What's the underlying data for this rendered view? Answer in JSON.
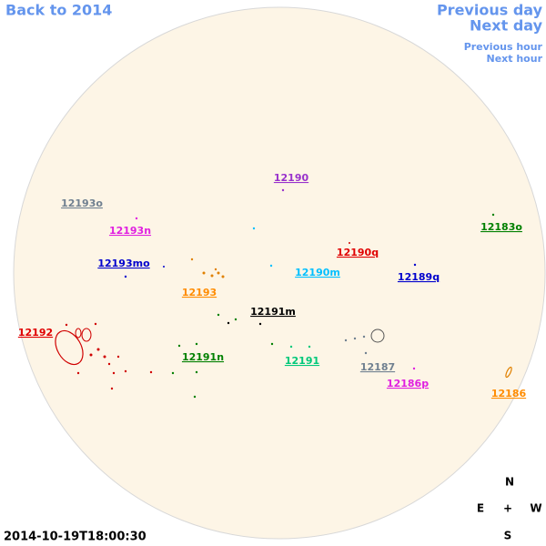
{
  "nav": {
    "back": "Back to 2014",
    "previous_day": "Previous day",
    "next_day": "Next day",
    "previous_hour": "Previous hour",
    "next_hour": "Next hour"
  },
  "regions": [
    {
      "label": "12193o",
      "color": "#708090"
    },
    {
      "label": "12193n",
      "color": "#e020e0"
    },
    {
      "label": "12190",
      "color": "#9932cc"
    },
    {
      "label": "12183o",
      "color": "#008000"
    },
    {
      "label": "12190q",
      "color": "#e00000"
    },
    {
      "label": "12193mo",
      "color": "#0000cd"
    },
    {
      "label": "12190m",
      "color": "#00bfff"
    },
    {
      "label": "12189q",
      "color": "#0000cd"
    },
    {
      "label": "12193",
      "color": "#ff8c00"
    },
    {
      "label": "12191m",
      "color": "#000000"
    },
    {
      "label": "12192",
      "color": "#e00000"
    },
    {
      "label": "12191n",
      "color": "#008000"
    },
    {
      "label": "12191",
      "color": "#00c87a"
    },
    {
      "label": "12187",
      "color": "#708090"
    },
    {
      "label": "12186p",
      "color": "#e020e0"
    },
    {
      "label": "12186",
      "color": "#ff8c00"
    }
  ],
  "compass": {
    "north": "N",
    "east": "E",
    "center": "+",
    "west": "W",
    "south": "S"
  },
  "timestamp": "2014-10-19T18:00:30"
}
